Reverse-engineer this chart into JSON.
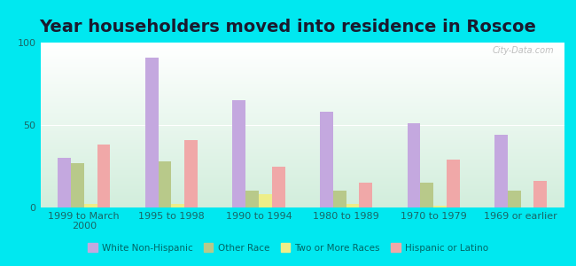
{
  "title": "Year householders moved into residence in Roscoe",
  "categories": [
    "1999 to March\n2000",
    "1995 to 1998",
    "1990 to 1994",
    "1980 to 1989",
    "1970 to 1979",
    "1969 or earlier"
  ],
  "series": {
    "White Non-Hispanic": [
      30,
      91,
      65,
      58,
      51,
      44
    ],
    "Other Race": [
      27,
      28,
      10,
      10,
      15,
      10
    ],
    "Two or More Races": [
      2,
      2,
      8,
      2,
      1,
      0
    ],
    "Hispanic or Latino": [
      38,
      41,
      25,
      15,
      29,
      16
    ]
  },
  "colors": {
    "White Non-Hispanic": "#c4a8df",
    "Other Race": "#b8c98a",
    "Two or More Races": "#eeee88",
    "Hispanic or Latino": "#f0a8a8"
  },
  "ylim": [
    0,
    100
  ],
  "yticks": [
    0,
    50,
    100
  ],
  "background_outer": "#00e8f0",
  "watermark": "City-Data.com",
  "title_fontsize": 14,
  "tick_fontsize": 8,
  "bar_width": 0.15,
  "group_width": 1.0
}
